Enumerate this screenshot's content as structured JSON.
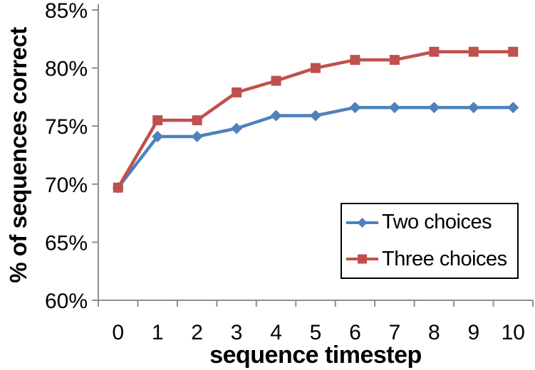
{
  "chart_data": {
    "type": "line",
    "title": "",
    "xlabel": "sequence timestep",
    "ylabel": "% of sequences correct",
    "x": [
      0,
      1,
      2,
      3,
      4,
      5,
      6,
      7,
      8,
      9,
      10
    ],
    "x_tick_labels": [
      "0",
      "1",
      "2",
      "3",
      "4",
      "5",
      "6",
      "7",
      "8",
      "9",
      "10"
    ],
    "y_ticks": [
      60,
      65,
      70,
      75,
      80,
      85
    ],
    "y_tick_labels": [
      "60%",
      "65%",
      "70%",
      "75%",
      "80%",
      "85%"
    ],
    "ylim": [
      60,
      85
    ],
    "grid": false,
    "legend_position": "lower-right-inside",
    "axis_color": "#8e8e8e",
    "background_color": "#ffffff",
    "text_color": "#000000",
    "series": [
      {
        "name": "Two choices",
        "color": "#4f81bd",
        "marker": "diamond",
        "values": [
          69.7,
          74.1,
          74.1,
          74.8,
          75.9,
          75.9,
          76.6,
          76.6,
          76.6,
          76.6,
          76.6
        ]
      },
      {
        "name": "Three choices",
        "color": "#c0504d",
        "marker": "square",
        "values": [
          69.7,
          75.5,
          75.5,
          77.9,
          78.9,
          80.0,
          80.7,
          80.7,
          81.4,
          81.4,
          81.4
        ]
      }
    ]
  }
}
